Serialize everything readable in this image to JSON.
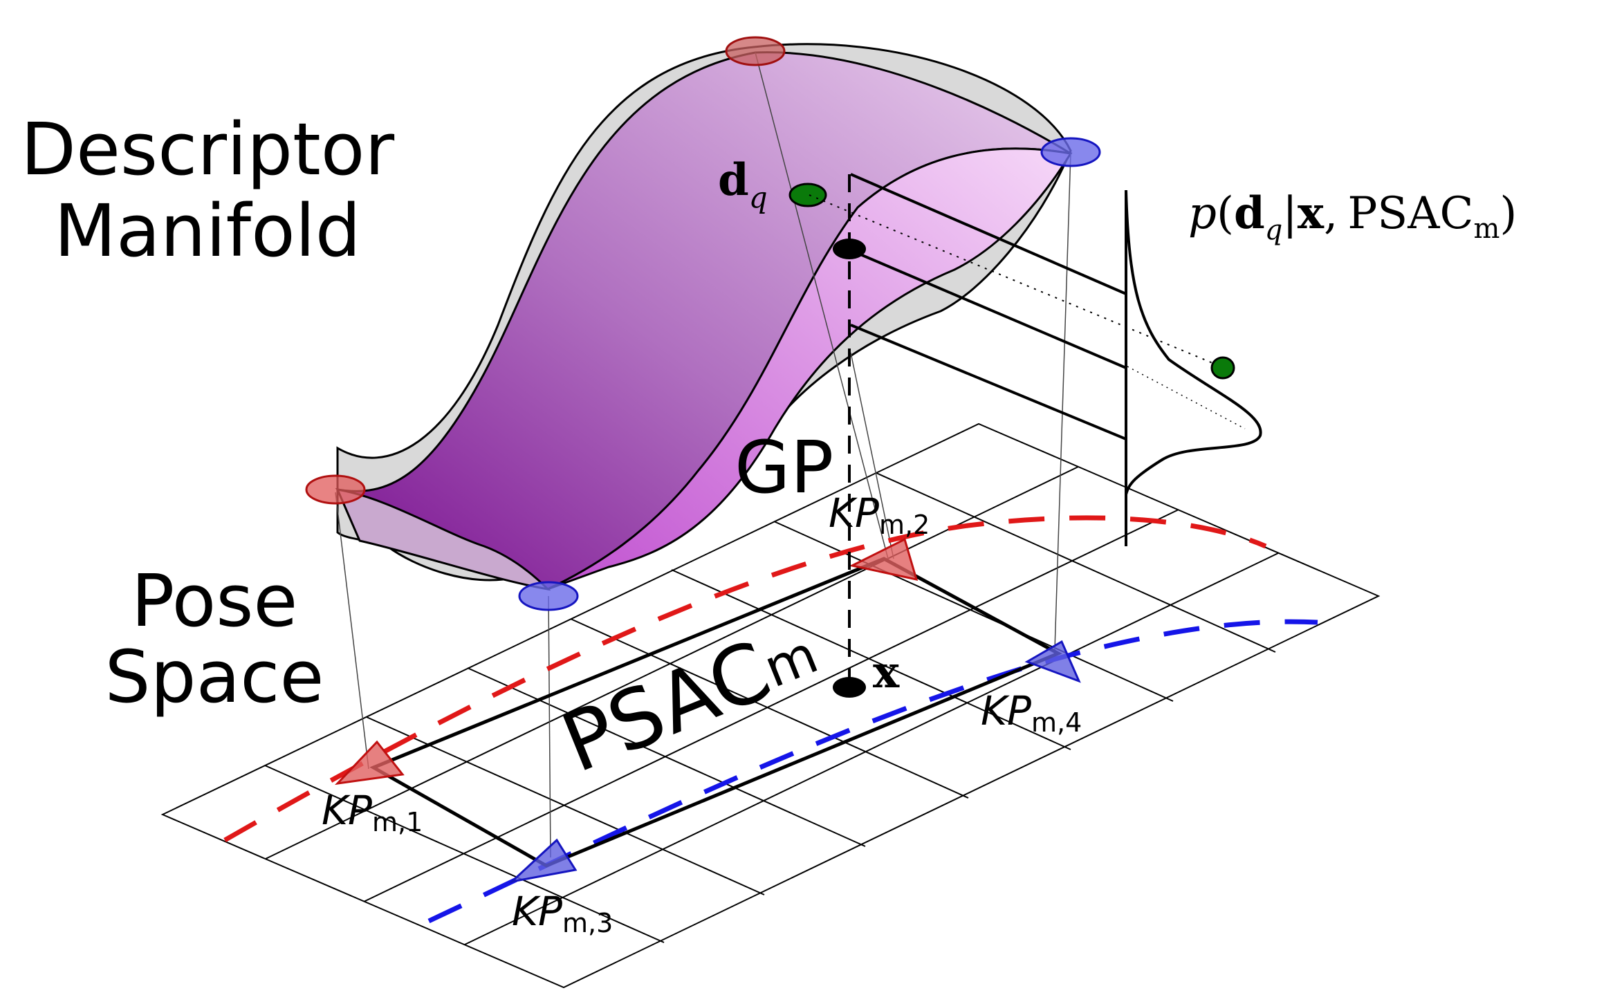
{
  "labels": {
    "descriptor_line1": "Descriptor",
    "descriptor_line2": "Manifold",
    "pose_line1": "Pose",
    "pose_line2": "Space",
    "gp": "GP",
    "psac_main": "PSAC",
    "psac_sub": "m",
    "x": "x",
    "dq_main": "d",
    "dq_sub": "q"
  },
  "keyposes": [
    {
      "main": "KP",
      "sub": "m,1"
    },
    {
      "main": "KP",
      "sub": "m,2"
    },
    {
      "main": "KP",
      "sub": "m,3"
    },
    {
      "main": "KP",
      "sub": "m,4"
    }
  ],
  "likelihood": {
    "p": "p",
    "open": "(",
    "d": "d",
    "q": "q",
    "bar": "|",
    "x": "x",
    "comma": ",",
    "psac": "PSAC",
    "psac_sub": "m",
    "close": ")"
  },
  "colors": {
    "red": "#e02020",
    "blue": "#1515e8",
    "green": "#0a7a0a",
    "surface_gray": "#d8d8d8",
    "purple_dark": "#8a1a9a",
    "purple_light": "#f0d0f4"
  }
}
